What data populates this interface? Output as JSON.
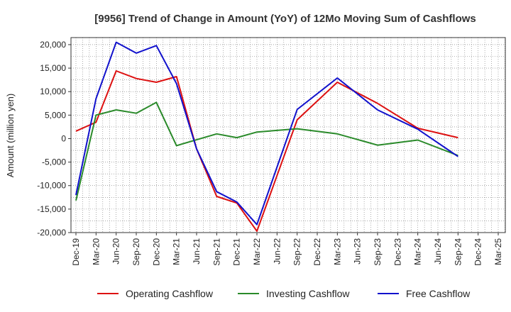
{
  "chart_data": {
    "type": "line",
    "title": "[9956]  Trend of Change in Amount (YoY) of 12Mo Moving Sum of Cashflows",
    "xlabel": "",
    "ylabel": "Amount (million yen)",
    "ylim": [
      -20000,
      21500
    ],
    "yticks": [
      20000,
      15000,
      10000,
      5000,
      0,
      -5000,
      -10000,
      -15000,
      -20000
    ],
    "ytick_labels": [
      "20,000",
      "15,000",
      "10,000",
      "5,000",
      "0",
      "-5,000",
      "-10,000",
      "-15,000",
      "-20,000"
    ],
    "grid": true,
    "legend_position": "bottom",
    "categories": [
      "Dec-19",
      "Mar-20",
      "Jun-20",
      "Sep-20",
      "Dec-20",
      "Mar-21",
      "Jun-21",
      "Sep-21",
      "Dec-21",
      "Mar-22",
      "Jun-22",
      "Sep-22",
      "Dec-22",
      "Mar-23",
      "Jun-23",
      "Sep-23",
      "Dec-23",
      "Mar-24",
      "Jun-24",
      "Sep-24",
      "Dec-24",
      "Mar-25"
    ],
    "series": [
      {
        "name": "Operating Cashflow",
        "color": "#dd1111",
        "values": [
          1600,
          3500,
          14400,
          12800,
          12000,
          13200,
          -2200,
          -12300,
          -13700,
          -19700,
          null,
          4000,
          null,
          12000,
          null,
          7500,
          null,
          2200,
          null,
          200,
          null,
          null
        ]
      },
      {
        "name": "Investing Cashflow",
        "color": "#2a8a2a",
        "values": [
          -13200,
          5000,
          6100,
          5400,
          7700,
          -1500,
          null,
          1000,
          200,
          1400,
          null,
          2100,
          null,
          1000,
          null,
          -1400,
          null,
          -300,
          null,
          -3600,
          null,
          null
        ]
      },
      {
        "name": "Free Cashflow",
        "color": "#1111cc",
        "values": [
          -12000,
          8500,
          20500,
          18200,
          19800,
          11700,
          -2200,
          -11300,
          -13500,
          -18300,
          null,
          6200,
          null,
          12900,
          null,
          6100,
          null,
          2000,
          null,
          -3800,
          null,
          null
        ]
      }
    ]
  }
}
